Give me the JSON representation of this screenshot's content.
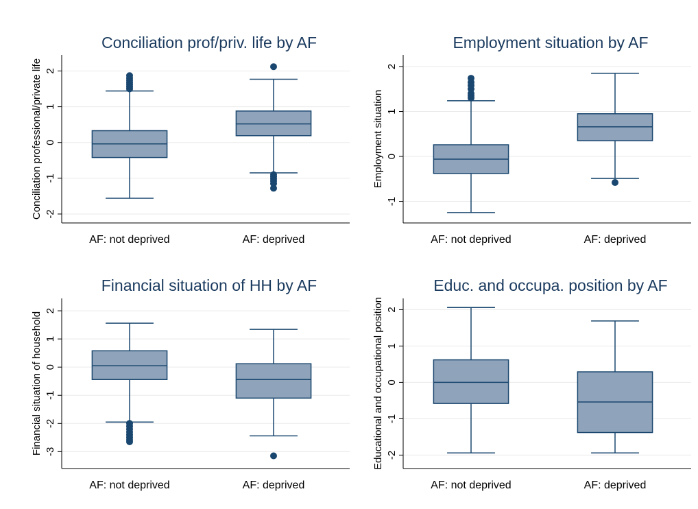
{
  "chart_data": [
    {
      "type": "box",
      "title": "Conciliation prof/priv. life by AF",
      "ylabel": "Conciliation professional/private life",
      "categories": [
        "AF: not deprived",
        "AF: deprived"
      ],
      "boxes": [
        {
          "whislo": -1.56,
          "q1": -0.42,
          "med": -0.04,
          "q3": 0.33,
          "whishi": 1.44,
          "fliers": [
            1.5,
            1.56,
            1.62,
            1.68,
            1.74,
            1.8,
            1.87
          ]
        },
        {
          "whislo": -0.85,
          "q1": 0.19,
          "med": 0.52,
          "q3": 0.88,
          "whishi": 1.77,
          "fliers": [
            2.12,
            -0.9,
            -0.96,
            -1.02,
            -1.08,
            -1.15,
            -1.28
          ]
        }
      ],
      "ylim": [
        -2.25,
        2.45
      ],
      "yticks": [
        -2,
        -1,
        0,
        1,
        2
      ],
      "grid": true,
      "color": "#8fa3ba"
    },
    {
      "type": "box",
      "title": "Employment situation by AF",
      "ylabel": "Employment situation",
      "categories": [
        "AF: not deprived",
        "AF: deprived"
      ],
      "boxes": [
        {
          "whislo": -1.25,
          "q1": -0.38,
          "med": -0.06,
          "q3": 0.26,
          "whishi": 1.24,
          "fliers": [
            1.3,
            1.35,
            1.4,
            1.5,
            1.58,
            1.65,
            1.74
          ]
        },
        {
          "whislo": -0.49,
          "q1": 0.35,
          "med": 0.66,
          "q3": 0.95,
          "whishi": 1.85,
          "fliers": [
            -0.58
          ]
        }
      ],
      "ylim": [
        -1.48,
        2.26
      ],
      "yticks": [
        -1,
        0,
        1,
        2
      ],
      "grid": true,
      "color": "#8fa3ba"
    },
    {
      "type": "box",
      "title": "Financial situation of HH by AF",
      "ylabel": "Financial situation of household",
      "categories": [
        "AF: not deprived",
        "AF: deprived"
      ],
      "boxes": [
        {
          "whislo": -1.95,
          "q1": -0.44,
          "med": 0.05,
          "q3": 0.58,
          "whishi": 1.56,
          "fliers": [
            -2.0,
            -2.1,
            -2.2,
            -2.3,
            -2.4,
            -2.5,
            -2.58,
            -2.65
          ]
        },
        {
          "whislo": -2.44,
          "q1": -1.1,
          "med": -0.44,
          "q3": 0.12,
          "whishi": 1.34,
          "fliers": [
            -3.15
          ]
        }
      ],
      "ylim": [
        -3.6,
        2.44
      ],
      "yticks": [
        -3,
        -2,
        -1,
        0,
        1,
        2
      ],
      "grid": true,
      "color": "#8fa3ba"
    },
    {
      "type": "box",
      "title": "Educ. and occupa. position by AF",
      "ylabel": "Educational and occupational position",
      "categories": [
        "AF: not deprived",
        "AF: deprived"
      ],
      "boxes": [
        {
          "whislo": -1.94,
          "q1": -0.58,
          "med": 0.0,
          "q3": 0.62,
          "whishi": 2.06,
          "fliers": []
        },
        {
          "whislo": -1.94,
          "q1": -1.38,
          "med": -0.54,
          "q3": 0.29,
          "whishi": 1.69,
          "fliers": []
        }
      ],
      "ylim": [
        -2.37,
        2.31
      ],
      "yticks": [
        -2,
        -1,
        0,
        1,
        2
      ],
      "grid": true,
      "color": "#8fa3ba"
    }
  ]
}
